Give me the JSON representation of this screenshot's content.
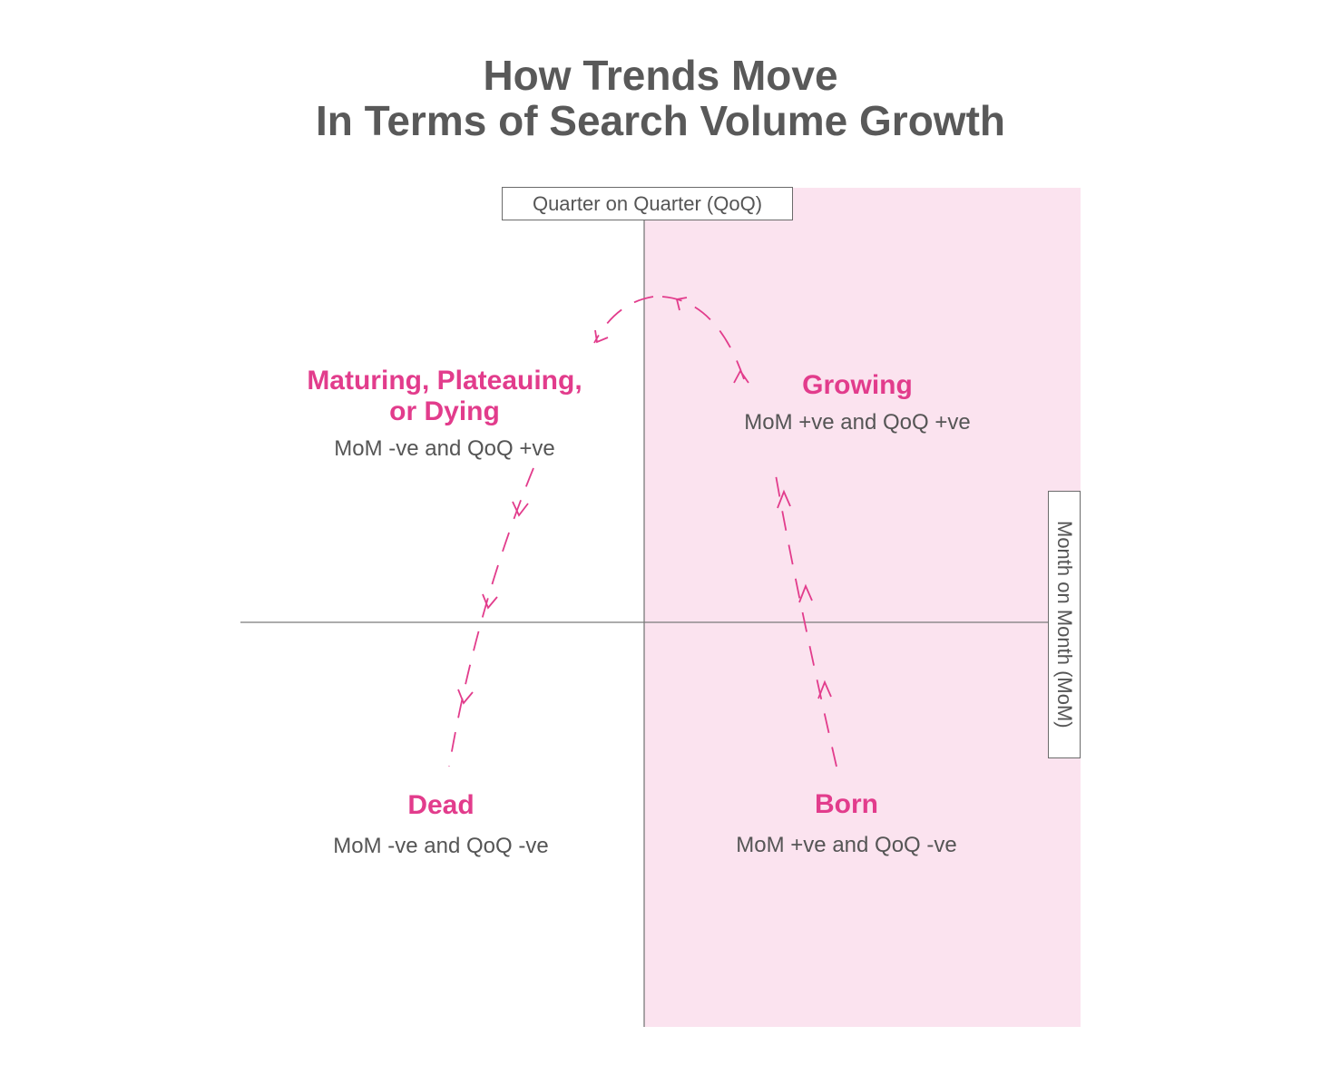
{
  "title": {
    "line1": "How Trends Move",
    "line2": "In Terms of Search Volume Growth"
  },
  "axes": {
    "vertical_label": "Quarter on Quarter (QoQ)",
    "horizontal_label": "Month on Month (MoM)"
  },
  "quadrants": {
    "maturing": {
      "name_line1": "Maturing, Plateauing,",
      "name_line2": "or Dying",
      "description": "MoM -ve and QoQ +ve"
    },
    "growing": {
      "name": "Growing",
      "description": "MoM +ve and QoQ +ve"
    },
    "dead": {
      "name": "Dead",
      "description": "MoM -ve and QoQ -ve"
    },
    "born": {
      "name": "Born",
      "description": "MoM +ve and QoQ -ve"
    }
  },
  "colors": {
    "accent": "#e23c8c",
    "highlight_fill": "#fbe3ef",
    "axis_line": "#7a7a7a",
    "text": "#555555"
  }
}
